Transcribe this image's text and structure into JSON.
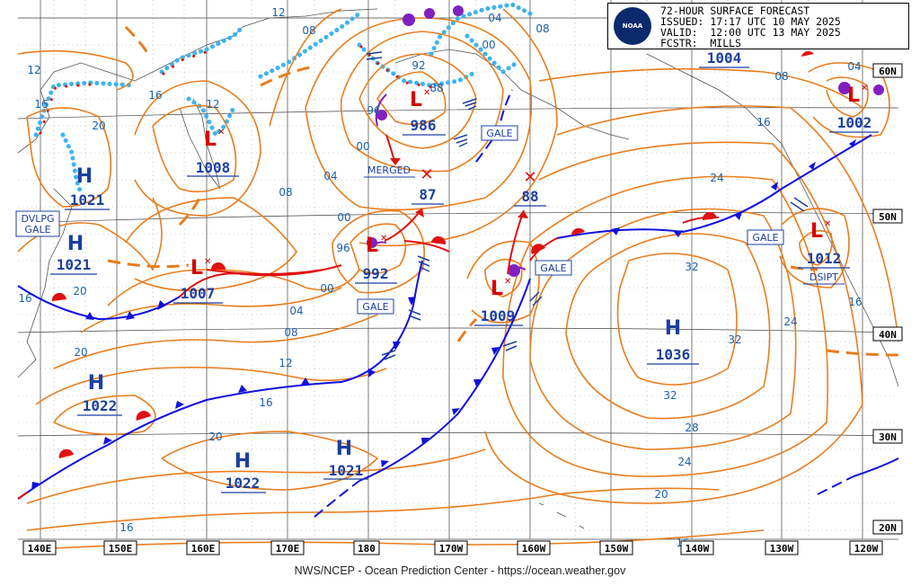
{
  "header": {
    "line1": "72-HOUR SURFACE FORECAST",
    "line2": "ISSUED: 17:17 UTC 10 MAY 2025",
    "line3": "VALID:  12:00 UTC 13 MAY 2025",
    "line4": "FCSTR:  MILLS",
    "logo_text": "NOAA"
  },
  "footer": "NWS/NCEP - Ocean Prediction Center - https://ocean.weather.gov",
  "longitudes": [
    "140E",
    "150E",
    "160E",
    "170E",
    "180",
    "170W",
    "160W",
    "150W",
    "140W",
    "130W",
    "120W"
  ],
  "latitudes": [
    "60N",
    "50N",
    "40N",
    "30N",
    "20N"
  ],
  "highs": [
    {
      "symbol": "H",
      "pressure": "1021"
    },
    {
      "symbol": "H",
      "pressure": "1021"
    },
    {
      "symbol": "H",
      "pressure": "1022"
    },
    {
      "symbol": "H",
      "pressure": "1022"
    },
    {
      "symbol": "H",
      "pressure": "1021"
    },
    {
      "symbol": "H",
      "pressure": "1036"
    }
  ],
  "lows": [
    {
      "symbol": "L",
      "pressure": "1008"
    },
    {
      "symbol": "L",
      "pressure": "986"
    },
    {
      "symbol": "L",
      "pressure": "1007"
    },
    {
      "symbol": "L",
      "pressure": "992"
    },
    {
      "symbol": "L",
      "pressure": "1009"
    },
    {
      "symbol": "L",
      "pressure": "1012"
    },
    {
      "symbol": "L",
      "pressure": "1002"
    }
  ],
  "track_points": [
    {
      "pressure": "87"
    },
    {
      "pressure": "88"
    }
  ],
  "other_pressures": [
    "1004"
  ],
  "boxes": {
    "dvlpg_line1": "DVLPG",
    "dvlpg_line2": "GALE",
    "gale": "GALE",
    "merged": "MERGED",
    "dsipt": "DSIPT"
  },
  "isobar_labels": [
    "12",
    "16",
    "20",
    "12",
    "16",
    "08",
    "04",
    "00",
    "08",
    "12",
    "92",
    "88",
    "96",
    "00",
    "04",
    "08",
    "00",
    "96",
    "00",
    "04",
    "08",
    "12",
    "16",
    "20",
    "16",
    "20",
    "24",
    "28",
    "32",
    "32",
    "32",
    "24",
    "20",
    "16",
    "16",
    "24",
    "16",
    "08",
    "04",
    "16",
    "20"
  ],
  "colors": {
    "isobar": "#e87d1e",
    "cold_front": "#1010e0",
    "warm_front": "#e01010",
    "occluded": "#8020c0",
    "ice": "#3cb4f0",
    "label_blue": "#1c3fa0",
    "low_red": "#d40000"
  }
}
